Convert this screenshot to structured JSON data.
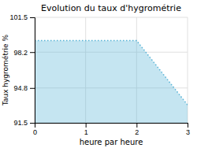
{
  "chart_data": {
    "type": "area",
    "title": "Evolution du taux d'hygrométrie",
    "xlabel": "heure par heure",
    "ylabel": "Taux hygrométrie %",
    "x": [
      0,
      2,
      3
    ],
    "values": [
      99.3,
      99.3,
      93.2
    ],
    "color": "#5ab4d6",
    "line_style": "dotted",
    "xlim": [
      0,
      3
    ],
    "xticks": [
      0,
      1,
      2,
      3
    ],
    "ylim": [
      91.5,
      101.5
    ],
    "yticks": [
      91.5,
      94.8,
      98.2,
      101.5
    ],
    "grid": true
  }
}
